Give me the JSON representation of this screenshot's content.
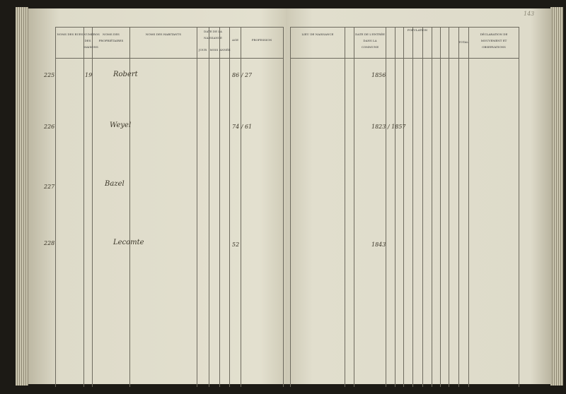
{
  "page_number": "143",
  "left_headers": {
    "rues": "Noms des rues",
    "numeros": "Numéros des maisons",
    "proprietaires": "Noms des propriétaires",
    "habitants": "Noms des habitants",
    "date": "Date de la naissance",
    "jour": "Jour",
    "mois": "Mois",
    "annee": "Année",
    "age": "Age",
    "profession": "Profession"
  },
  "right_headers": {
    "lieu": "Lieu de naissance",
    "date_entree": "Date de l'entrée dans la commune",
    "population": "Population",
    "total": "Total",
    "declaration": "Déclaration de mouvement et observations"
  },
  "entries": [
    {
      "num": "225",
      "house": "19",
      "name": "Robert",
      "ages": "86 / 27",
      "year": "1856"
    },
    {
      "num": "226",
      "name": "Weyel",
      "ages": "74 / 61",
      "year": "1823 / 1857"
    },
    {
      "num": "227",
      "name": "Bazel"
    },
    {
      "num": "228",
      "name": "Lecomte",
      "ages": "52",
      "year": "1843"
    }
  ]
}
